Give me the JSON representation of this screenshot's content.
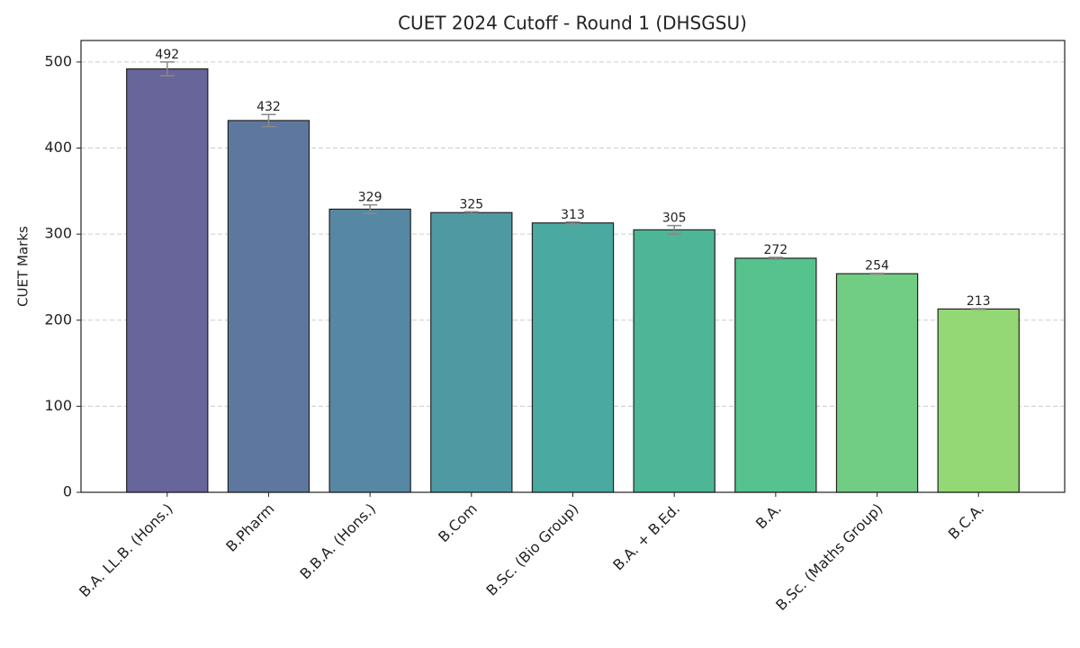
{
  "chart_data": {
    "type": "bar",
    "title": "CUET 2024 Cutoff - Round 1 (DHSGSU)",
    "y_label": "CUET Marks",
    "categories": [
      "B.A. LL.B. (Hons.)",
      "B.Pharm",
      "B.B.A. (Hons.)",
      "B.Com",
      "B.Sc. (Bio Group)",
      "B.A. + B.Ed.",
      "B.A.",
      "B.Sc. (Maths Group)",
      "B.C.A."
    ],
    "values": [
      492,
      432,
      329,
      325,
      313,
      305,
      272,
      254,
      213
    ],
    "errors": [
      8,
      7,
      5,
      1,
      1,
      5,
      1,
      0.5,
      0.5
    ],
    "colors": [
      "#67659a",
      "#5e779e",
      "#5788a3",
      "#4f99a2",
      "#4aa9a1",
      "#4cb697",
      "#56c38f",
      "#72cd84",
      "#93d874"
    ],
    "ylim": [
      0,
      525
    ],
    "yticks": [
      0,
      100,
      200,
      300,
      400,
      500
    ],
    "grid": true
  }
}
